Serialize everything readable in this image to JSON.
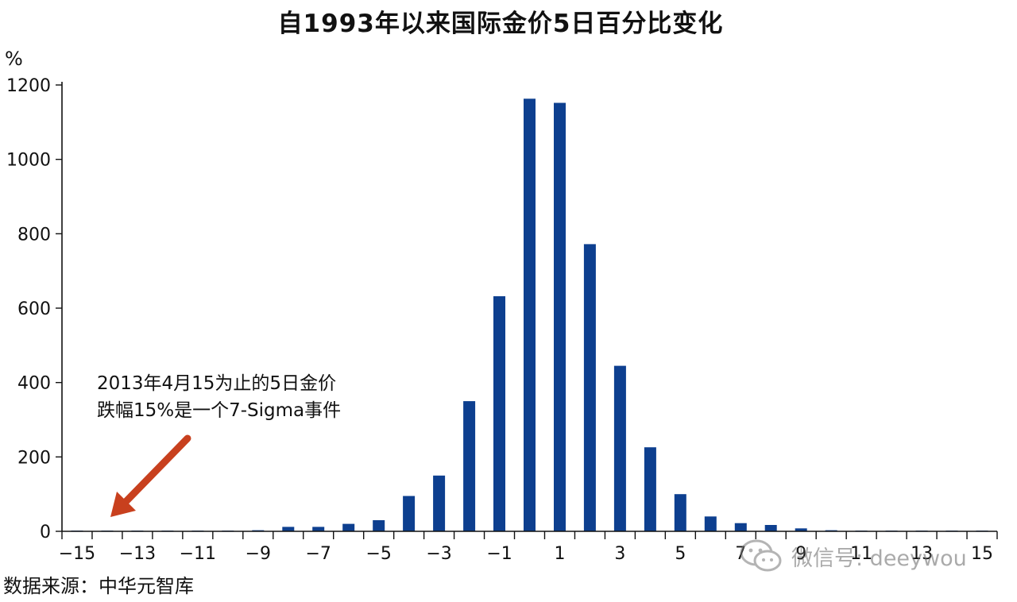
{
  "chart_data": {
    "type": "bar",
    "title": "自1993年以来国际金价5日百分比变化",
    "ylabel": "%",
    "xlabel": "",
    "ylim": [
      0,
      1200
    ],
    "yticks": [
      0,
      200,
      400,
      600,
      800,
      1000,
      1200
    ],
    "xtick_labels": [
      "−15",
      "−13",
      "−11",
      "−9",
      "−7",
      "−5",
      "−3",
      "−1",
      "1",
      "3",
      "5",
      "7",
      "9",
      "11",
      "13",
      "15"
    ],
    "categories": [
      -15,
      -14,
      -13,
      -12,
      -11,
      -10,
      -9,
      -8,
      -7,
      -6,
      -5,
      -4,
      -3,
      -2,
      -1,
      0,
      1,
      2,
      3,
      4,
      5,
      6,
      7,
      8,
      9,
      10,
      11,
      12,
      13,
      14,
      15
    ],
    "values": [
      2,
      2,
      2,
      2,
      2,
      2,
      3,
      12,
      12,
      20,
      30,
      95,
      150,
      350,
      632,
      1163,
      1152,
      772,
      445,
      226,
      100,
      40,
      22,
      17,
      8,
      3,
      2,
      2,
      2,
      2,
      2
    ],
    "bar_color": "#0d3f8f",
    "grid": false,
    "annotation": {
      "lines": [
        "2013年4月15为止的5日金价",
        "跌幅15%是一个7-Sigma事件"
      ],
      "arrow_color": "#c8401e"
    }
  },
  "source_note": "数据来源：中华元智库",
  "watermark": {
    "text": "微信号: deeywou",
    "icon": "wechat-icon"
  }
}
